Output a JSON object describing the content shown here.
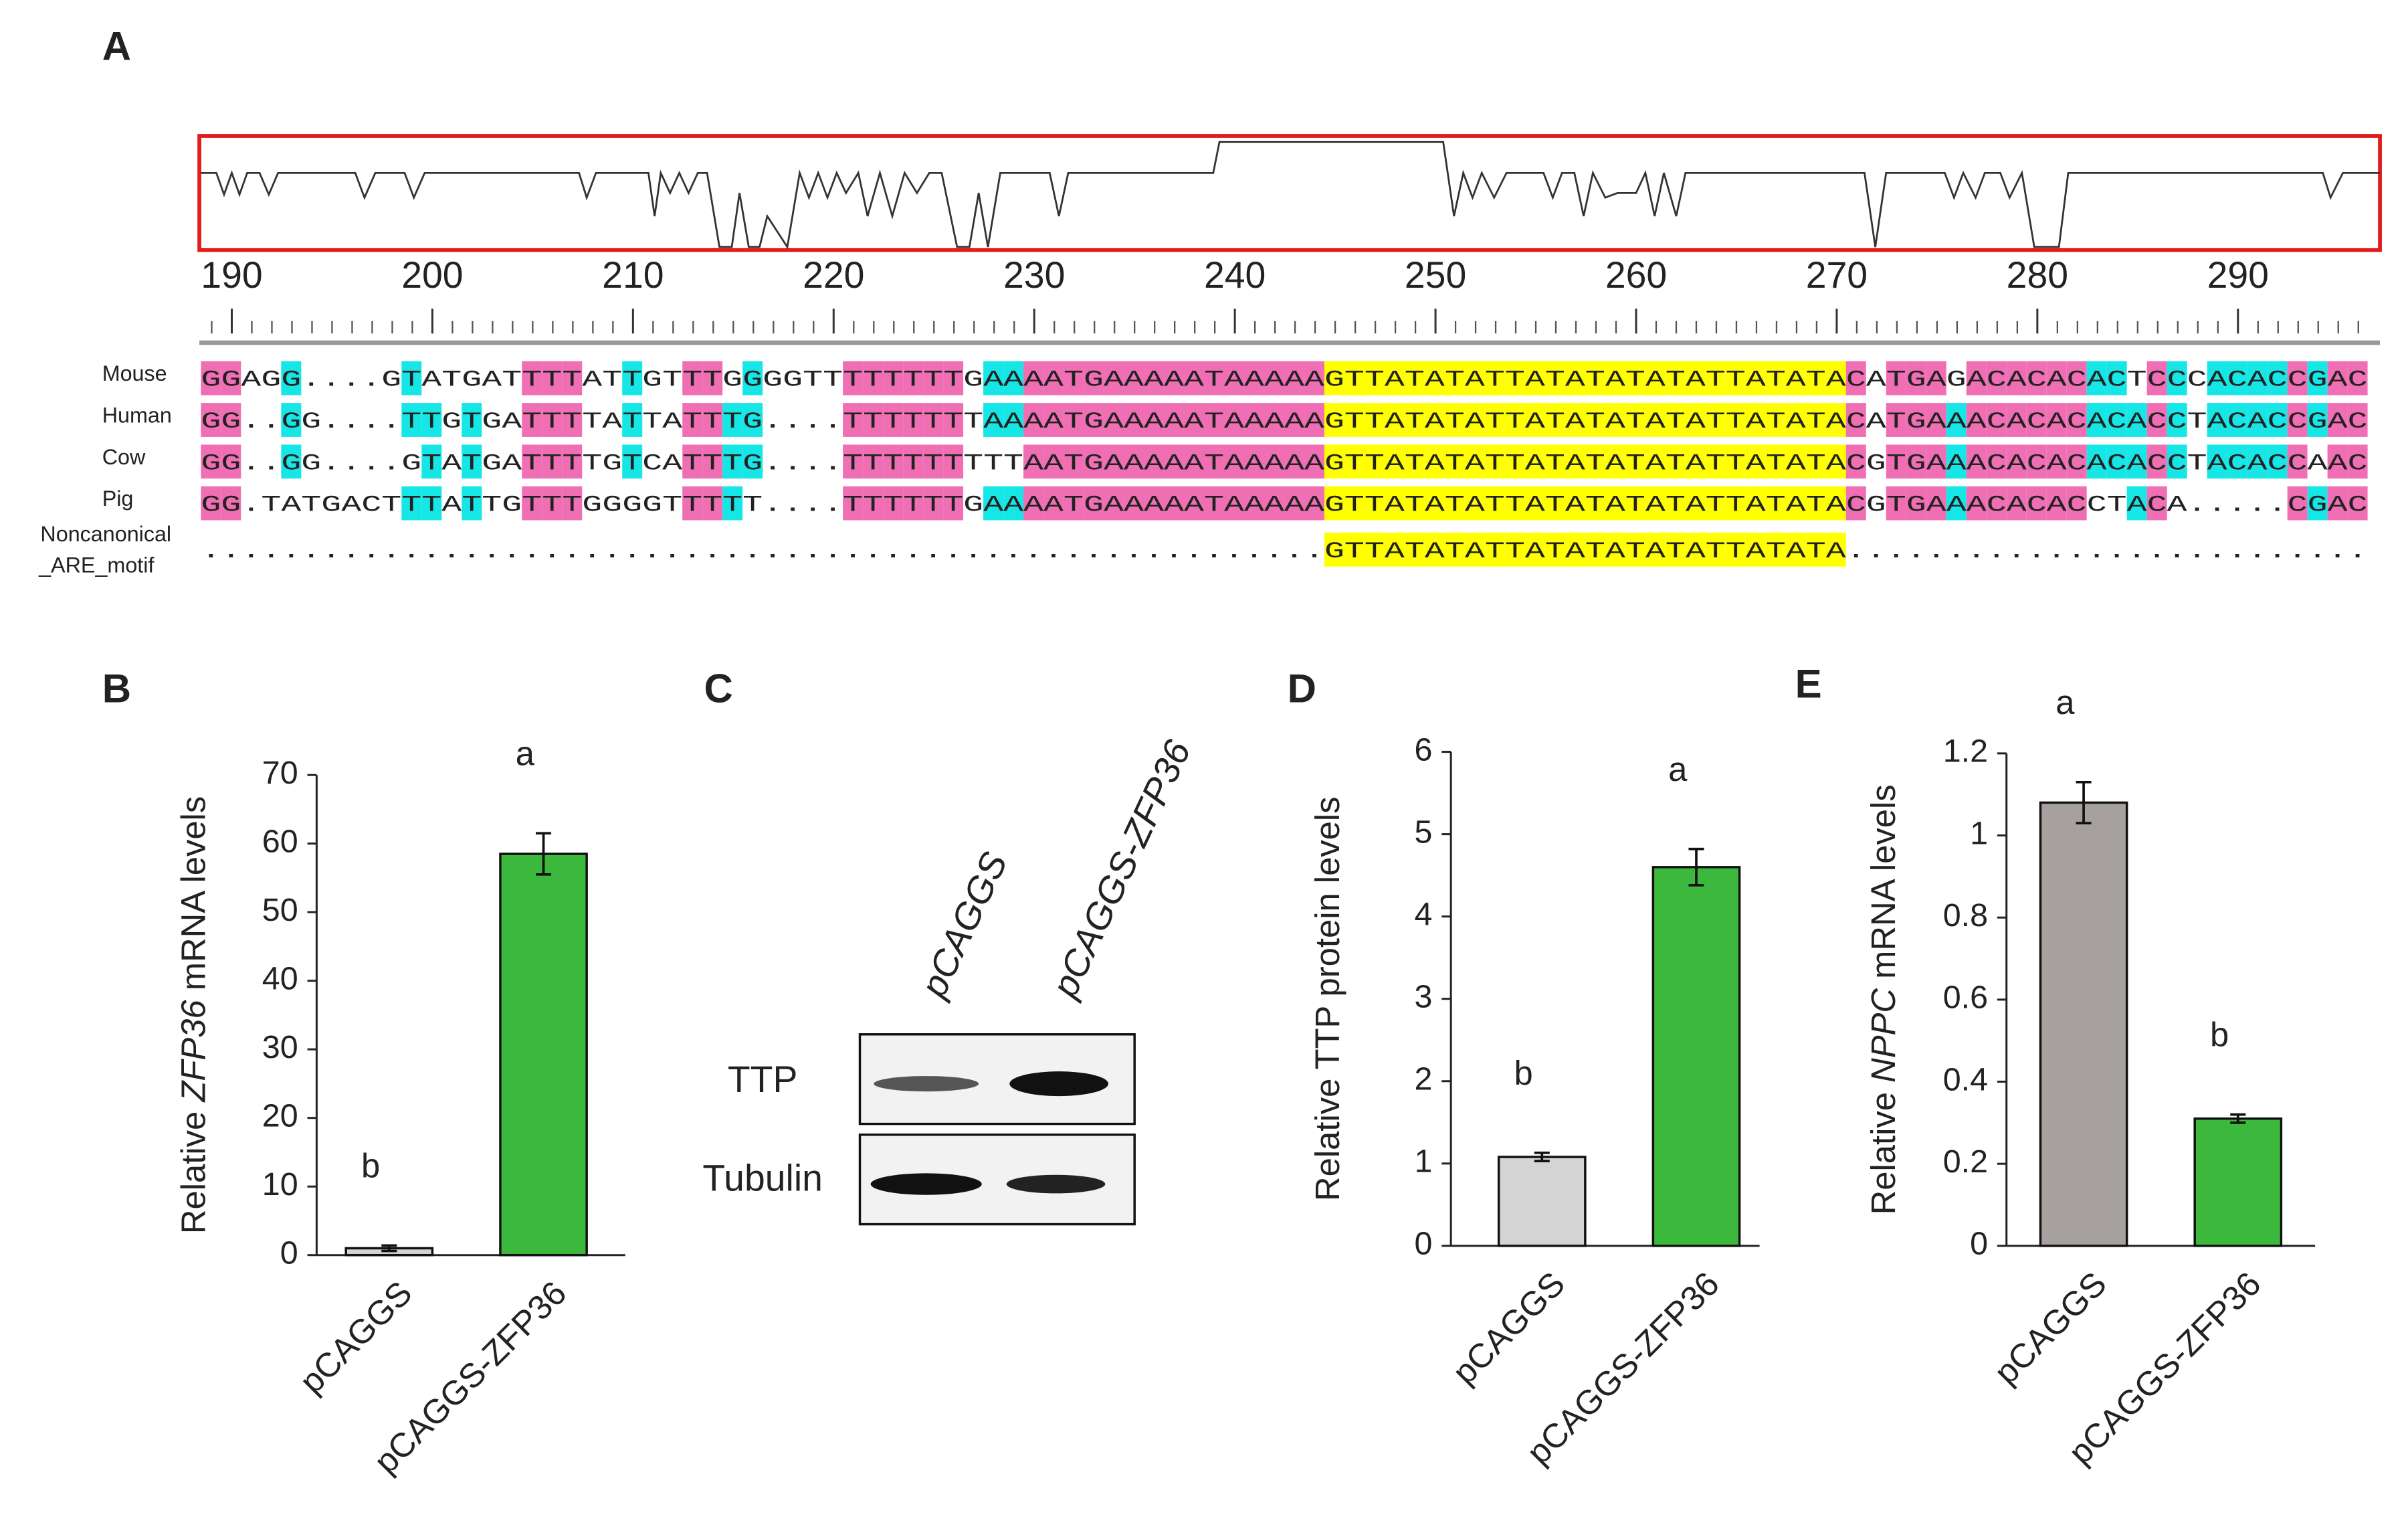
{
  "panel_letters": [
    "A",
    "B",
    "C",
    "D",
    "E"
  ],
  "alignment": {
    "ruler": [
      190,
      200,
      210,
      220,
      230,
      240,
      250,
      260,
      270,
      280,
      290
    ],
    "rows": [
      {
        "name": "Mouse",
        "sequence": "GGAGG....GTATGATTTTATTGTTTGGGGTTTTTTTTGAAAATGAAAAATAAAAAGTTATATATTATATATATATTATATACATGAGACACACACTCCCACACCGAC"
      },
      {
        "name": "Human",
        "sequence": "GG..GG....TTGTGATTTTATTATTTG....TTTTTTTAAAATGAAAAATAAAAAGTTATATATTATATATATATTATATACATGAAACACACACACCTACACCGAC"
      },
      {
        "name": "Cow",
        "sequence": "GG..GG....GTATGATTTTGTCATTTG....TTTTTTTTTAATGAAAAATAAAAAGTTATATATTATATATATATTATATACGTGAAACACACACACCTACACCAAC"
      },
      {
        "name": "Pig",
        "sequence": "GG.TATGACTTTATTGTTTGGGGTTTTT....TTTTTTGAAAATGAAAAATAAAAAGTTATATATTATATATATATTATATACGTGAAACACACCTACA.....CGAC"
      }
    ],
    "motif": {
      "name_lines": [
        "Noncanonical",
        "_ARE_motif"
      ],
      "sequence": "........................................................GTTATATATTATATATATATTATATA.........................."
    }
  },
  "blot": {
    "lanes": [
      "pCAGGS",
      "pCAGGS-ZFP36"
    ],
    "bands": [
      "TTP",
      "Tubulin"
    ]
  },
  "chart_data": [
    {
      "type": "bar",
      "y_label": [
        "Relative ",
        "ZFP36",
        " mRNA levels"
      ],
      "categories": [
        "pCAGGS",
        "pCAGGS-ZFP36"
      ],
      "values": [
        1,
        58.5
      ],
      "errors": [
        0.4,
        3
      ],
      "significance": [
        "b",
        "a"
      ],
      "colors": [
        "#d4d4d4",
        "#3cb93c"
      ],
      "ylim": [
        0,
        70
      ],
      "yticks": [
        0,
        10,
        20,
        30,
        40,
        50,
        60,
        70
      ]
    },
    {
      "type": "bar",
      "y_label": [
        "Relative TTP protein levels"
      ],
      "categories": [
        "pCAGGS",
        "pCAGGS-ZFP36"
      ],
      "values": [
        1.08,
        4.6
      ],
      "errors": [
        0.05,
        0.22
      ],
      "significance": [
        "b",
        "a"
      ],
      "colors": [
        "#d4d4d4",
        "#3cb93c"
      ],
      "ylim": [
        0,
        6
      ],
      "yticks": [
        0,
        1,
        2,
        3,
        4,
        5,
        6
      ]
    },
    {
      "type": "bar",
      "y_label": [
        "Relative ",
        "NPPC",
        " mRNA levels"
      ],
      "categories": [
        "pCAGGS",
        "pCAGGS-ZFP36"
      ],
      "values": [
        1.08,
        0.31
      ],
      "errors": [
        0.05,
        0.01
      ],
      "significance": [
        "a",
        "b"
      ],
      "colors": [
        "#a6a19e",
        "#3cb93c"
      ],
      "ylim": [
        0,
        1.2
      ],
      "yticks": [
        0,
        0.2,
        0.4,
        0.6,
        0.8,
        1,
        1.2
      ]
    }
  ]
}
